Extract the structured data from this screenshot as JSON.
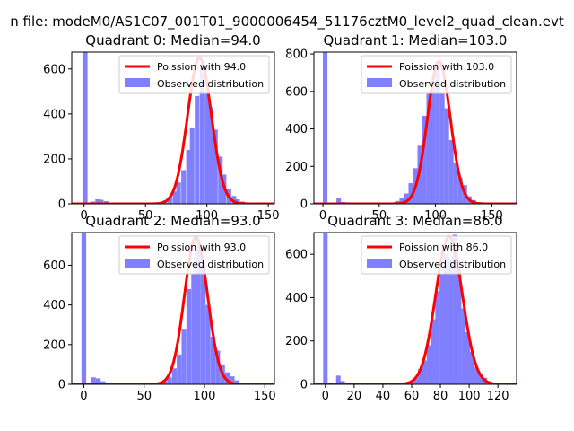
{
  "figure": {
    "suptitle": "n file: modeM0/AS1C07_001T01_9000006454_51176cztM0_level2_quad_clean.evt"
  },
  "colors": {
    "poisson_line": "#ff0000",
    "observed_bars": "#7f7fff",
    "axes": "#000000"
  },
  "chart_data": [
    {
      "type": "bar",
      "title": "Quadrant 0: Median=94.0",
      "legend": {
        "placement": "top-right",
        "entries": [
          "Poission with 94.0",
          "Observed distribution"
        ]
      },
      "xlim": [
        -10,
        155
      ],
      "ylim": [
        0,
        675
      ],
      "xticks": [
        0,
        50,
        100,
        150
      ],
      "yticks": [
        0,
        200,
        400,
        600
      ],
      "bin_width": 3.7,
      "observed": {
        "name": "Observed distribution",
        "x": [
          1,
          7,
          11,
          14,
          18,
          22,
          26,
          29,
          33,
          37,
          40,
          44,
          48,
          52,
          55,
          59,
          63,
          66,
          70,
          74,
          77,
          81,
          85,
          88,
          92,
          96,
          100,
          103,
          107,
          111,
          114,
          118,
          122,
          125,
          129,
          133
        ],
        "values": [
          675,
          10,
          20,
          18,
          12,
          0,
          0,
          0,
          0,
          0,
          0,
          0,
          0,
          0,
          2,
          3,
          8,
          15,
          30,
          55,
          95,
          150,
          240,
          340,
          480,
          600,
          500,
          430,
          330,
          210,
          130,
          65,
          35,
          20,
          10,
          4
        ]
      },
      "poisson": {
        "name": "Poission with 94.0",
        "mean": 94.0,
        "amplitude": 650,
        "sigma": 9.7
      }
    },
    {
      "type": "bar",
      "title": "Quadrant 1: Median=103.0",
      "legend": {
        "placement": "top-right",
        "entries": [
          "Poission with 103.0",
          "Observed distribution"
        ]
      },
      "xlim": [
        -8,
        172
      ],
      "ylim": [
        0,
        810
      ],
      "xticks": [
        0,
        50,
        100,
        150
      ],
      "yticks": [
        0,
        200,
        400,
        600,
        800
      ],
      "bin_width": 4.0,
      "observed": {
        "name": "Observed distribution",
        "x": [
          2,
          14,
          18,
          22,
          26,
          58,
          62,
          66,
          70,
          74,
          78,
          82,
          86,
          90,
          94,
          98,
          102,
          106,
          110,
          114,
          118,
          122,
          126,
          130,
          134,
          138,
          142
        ],
        "values": [
          810,
          30,
          10,
          8,
          4,
          3,
          6,
          15,
          30,
          55,
          110,
          190,
          310,
          470,
          600,
          640,
          710,
          590,
          510,
          340,
          220,
          140,
          100,
          40,
          20,
          10,
          5
        ]
      },
      "poisson": {
        "name": "Poission with 103.0",
        "mean": 103.0,
        "amplitude": 760,
        "sigma": 10.1
      }
    },
    {
      "type": "bar",
      "title": "Quadrant 2: Median=93.0",
      "legend": {
        "placement": "top-right",
        "entries": [
          "Poission with 93.0",
          "Observed distribution"
        ]
      },
      "xlim": [
        -10,
        158
      ],
      "ylim": [
        0,
        765
      ],
      "xticks": [
        0,
        50,
        100,
        150
      ],
      "yticks": [
        0,
        200,
        400,
        600
      ],
      "bin_width": 3.9,
      "observed": {
        "name": "Observed distribution",
        "x": [
          0,
          8,
          12,
          16,
          63,
          67,
          71,
          75,
          79,
          83,
          87,
          91,
          95,
          99,
          103,
          107,
          111,
          115,
          119,
          123,
          127,
          131
        ],
        "values": [
          765,
          35,
          30,
          15,
          5,
          15,
          35,
          80,
          150,
          280,
          480,
          560,
          700,
          600,
          400,
          240,
          170,
          100,
          60,
          40,
          20,
          8
        ]
      },
      "poisson": {
        "name": "Poission with 93.0",
        "mean": 93.0,
        "amplitude": 740,
        "sigma": 9.6
      }
    },
    {
      "type": "bar",
      "title": "Quadrant 3: Median=86.0",
      "legend": {
        "placement": "top-right",
        "entries": [
          "Poission with 86.0",
          "Observed distribution"
        ]
      },
      "xlim": [
        -8,
        133
      ],
      "ylim": [
        0,
        700
      ],
      "xticks": [
        0,
        20,
        40,
        60,
        80,
        100,
        120
      ],
      "yticks": [
        0,
        200,
        400,
        600
      ],
      "bin_width": 3.1,
      "observed": {
        "name": "Observed distribution",
        "x": [
          0,
          9,
          12,
          60,
          63,
          66,
          69,
          72,
          75,
          78,
          81,
          84,
          87,
          90,
          93,
          96,
          99,
          102,
          105,
          108,
          111,
          114,
          117
        ],
        "values": [
          700,
          40,
          15,
          10,
          30,
          70,
          110,
          180,
          300,
          430,
          510,
          600,
          580,
          690,
          520,
          350,
          240,
          150,
          80,
          50,
          30,
          15,
          5
        ]
      },
      "poisson": {
        "name": "Poission with 86.0",
        "mean": 86.0,
        "amplitude": 680,
        "sigma": 9.3
      }
    }
  ]
}
